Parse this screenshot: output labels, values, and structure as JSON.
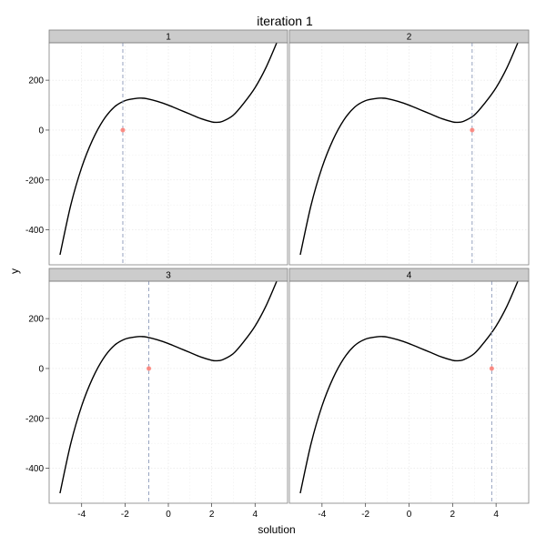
{
  "chart_data": {
    "type": "line",
    "title": "iteration 1",
    "xlabel": "solution",
    "ylabel": "y",
    "xlim": [
      -5.5,
      5.5
    ],
    "ylim": [
      -540,
      350
    ],
    "x_ticks": [
      -4,
      -2,
      0,
      2,
      4
    ],
    "y_ticks": [
      -400,
      -200,
      0,
      200
    ],
    "grid": true,
    "curve": {
      "x": [
        -5,
        -4.5,
        -4,
        -3.5,
        -3,
        -2.5,
        -2,
        -1.5,
        -1.25,
        -1,
        -0.5,
        0,
        0.5,
        1,
        1.5,
        2,
        2.2,
        2.5,
        3,
        3.5,
        4,
        4.5,
        5
      ],
      "y": [
        -500,
        -300,
        -150,
        -40,
        40,
        92,
        118,
        127,
        128,
        126,
        115,
        100,
        82,
        64,
        46,
        33,
        31,
        35,
        60,
        110,
        170,
        250,
        350
      ]
    },
    "panels": [
      {
        "label": "1",
        "solution": -2.1,
        "y": 0
      },
      {
        "label": "2",
        "solution": 2.9,
        "y": 0
      },
      {
        "label": "3",
        "solution": -0.9,
        "y": 0
      },
      {
        "label": "4",
        "solution": 3.8,
        "y": 0
      }
    ]
  }
}
